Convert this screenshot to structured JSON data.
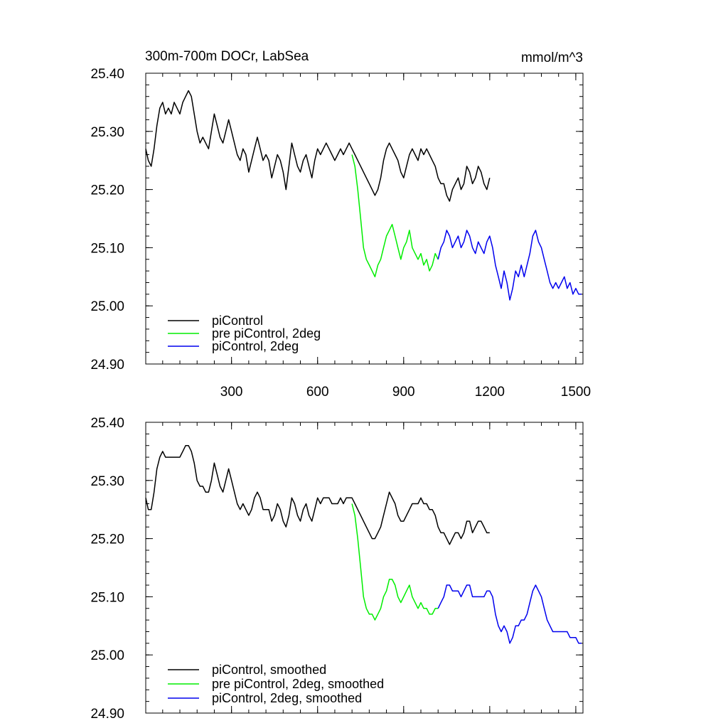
{
  "chart_data": [
    {
      "type": "line",
      "title": "300m-700m DOCr, LabSea",
      "units_label": "mmol/m^3",
      "xlim": [
        1,
        1525
      ],
      "ylim": [
        24.9,
        25.4
      ],
      "x_ticks": [
        300,
        600,
        900,
        1200,
        1500
      ],
      "x_tick_labels": [
        "300",
        "600",
        "900",
        "1200",
        "1500"
      ],
      "y_ticks": [
        24.9,
        25.0,
        25.1,
        25.2,
        25.3,
        25.4
      ],
      "y_tick_labels": [
        "24.90",
        "25.00",
        "25.10",
        "25.20",
        "25.30",
        "25.40"
      ],
      "grid": false,
      "legend_position": "bottom-left",
      "series": [
        {
          "name": "piControl",
          "color": "#000000",
          "x": [
            1,
            10,
            20,
            30,
            40,
            50,
            60,
            70,
            80,
            90,
            100,
            110,
            120,
            130,
            140,
            150,
            160,
            170,
            180,
            190,
            200,
            210,
            220,
            230,
            240,
            250,
            260,
            270,
            280,
            290,
            300,
            310,
            320,
            330,
            340,
            350,
            360,
            370,
            380,
            390,
            400,
            410,
            420,
            430,
            440,
            450,
            460,
            470,
            480,
            490,
            500,
            510,
            520,
            530,
            540,
            550,
            560,
            570,
            580,
            590,
            600,
            610,
            620,
            630,
            640,
            650,
            660,
            670,
            680,
            690,
            700,
            710,
            720,
            730,
            740,
            750,
            760,
            770,
            780,
            790,
            800,
            810,
            820,
            830,
            840,
            850,
            860,
            870,
            880,
            890,
            900,
            910,
            920,
            930,
            940,
            950,
            960,
            970,
            980,
            990,
            1000,
            1010,
            1020,
            1030,
            1040,
            1050,
            1060,
            1070,
            1080,
            1090,
            1100,
            1110,
            1120,
            1130,
            1140,
            1150,
            1160,
            1170,
            1180,
            1190,
            1200
          ],
          "y": [
            25.27,
            25.25,
            25.24,
            25.27,
            25.31,
            25.34,
            25.35,
            25.33,
            25.34,
            25.33,
            25.35,
            25.34,
            25.33,
            25.35,
            25.36,
            25.37,
            25.36,
            25.33,
            25.3,
            25.28,
            25.29,
            25.28,
            25.27,
            25.3,
            25.33,
            25.31,
            25.29,
            25.28,
            25.3,
            25.32,
            25.3,
            25.28,
            25.26,
            25.25,
            25.27,
            25.26,
            25.23,
            25.25,
            25.27,
            25.29,
            25.27,
            25.25,
            25.26,
            25.25,
            25.22,
            25.24,
            25.26,
            25.25,
            25.23,
            25.2,
            25.24,
            25.28,
            25.26,
            25.24,
            25.23,
            25.25,
            25.26,
            25.24,
            25.22,
            25.25,
            25.27,
            25.26,
            25.27,
            25.28,
            25.27,
            25.26,
            25.25,
            25.26,
            25.27,
            25.26,
            25.27,
            25.28,
            25.27,
            25.26,
            25.25,
            25.24,
            25.23,
            25.22,
            25.21,
            25.2,
            25.19,
            25.2,
            25.22,
            25.25,
            25.27,
            25.28,
            25.27,
            25.26,
            25.25,
            25.23,
            25.22,
            25.24,
            25.26,
            25.27,
            25.26,
            25.25,
            25.27,
            25.26,
            25.27,
            25.26,
            25.25,
            25.24,
            25.22,
            25.21,
            25.21,
            25.19,
            25.18,
            25.2,
            25.21,
            25.22,
            25.2,
            25.21,
            25.24,
            25.23,
            25.21,
            25.22,
            25.24,
            25.23,
            25.21,
            25.2,
            25.22
          ]
        },
        {
          "name": "pre piControl, 2deg",
          "color": "#00ee00",
          "x": [
            720,
            730,
            740,
            750,
            760,
            770,
            780,
            790,
            800,
            810,
            820,
            830,
            840,
            850,
            860,
            870,
            880,
            890,
            900,
            910,
            920,
            930,
            940,
            950,
            960,
            970,
            980,
            990,
            1000,
            1010,
            1020
          ],
          "y": [
            25.26,
            25.24,
            25.2,
            25.15,
            25.1,
            25.08,
            25.07,
            25.06,
            25.05,
            25.07,
            25.08,
            25.1,
            25.12,
            25.13,
            25.14,
            25.12,
            25.1,
            25.08,
            25.1,
            25.11,
            25.13,
            25.1,
            25.09,
            25.08,
            25.09,
            25.07,
            25.08,
            25.06,
            25.07,
            25.09,
            25.08
          ]
        },
        {
          "name": "piControl, 2deg",
          "color": "#0000ee",
          "x": [
            1020,
            1030,
            1040,
            1050,
            1060,
            1070,
            1080,
            1090,
            1100,
            1110,
            1120,
            1130,
            1140,
            1150,
            1160,
            1170,
            1180,
            1190,
            1200,
            1210,
            1220,
            1230,
            1240,
            1250,
            1260,
            1270,
            1280,
            1290,
            1300,
            1310,
            1320,
            1330,
            1340,
            1350,
            1360,
            1370,
            1380,
            1390,
            1400,
            1410,
            1420,
            1430,
            1440,
            1450,
            1460,
            1470,
            1480,
            1490,
            1500,
            1510,
            1520
          ],
          "y": [
            25.08,
            25.1,
            25.11,
            25.13,
            25.12,
            25.1,
            25.11,
            25.12,
            25.1,
            25.11,
            25.13,
            25.12,
            25.1,
            25.09,
            25.11,
            25.1,
            25.09,
            25.11,
            25.12,
            25.1,
            25.07,
            25.05,
            25.03,
            25.06,
            25.04,
            25.01,
            25.03,
            25.06,
            25.05,
            25.07,
            25.05,
            25.07,
            25.09,
            25.12,
            25.13,
            25.11,
            25.1,
            25.08,
            25.06,
            25.04,
            25.03,
            25.04,
            25.03,
            25.04,
            25.05,
            25.03,
            25.04,
            25.02,
            25.03,
            25.02,
            25.02
          ]
        }
      ]
    },
    {
      "type": "line",
      "xlim": [
        1,
        1525
      ],
      "ylim": [
        24.9,
        25.4
      ],
      "x_ticks": [
        300,
        600,
        900,
        1200,
        1500
      ],
      "y_ticks": [
        24.9,
        25.0,
        25.1,
        25.2,
        25.3,
        25.4
      ],
      "y_tick_labels": [
        "24.90",
        "25.00",
        "25.10",
        "25.20",
        "25.30",
        "25.40"
      ],
      "grid": false,
      "legend_position": "bottom-left",
      "series": [
        {
          "name": "piControl, smoothed",
          "color": "#000000",
          "x": [
            1,
            10,
            20,
            30,
            40,
            50,
            60,
            70,
            80,
            90,
            100,
            110,
            120,
            130,
            140,
            150,
            160,
            170,
            180,
            190,
            200,
            210,
            220,
            230,
            240,
            250,
            260,
            270,
            280,
            290,
            300,
            310,
            320,
            330,
            340,
            350,
            360,
            370,
            380,
            390,
            400,
            410,
            420,
            430,
            440,
            450,
            460,
            470,
            480,
            490,
            500,
            510,
            520,
            530,
            540,
            550,
            560,
            570,
            580,
            590,
            600,
            610,
            620,
            630,
            640,
            650,
            660,
            670,
            680,
            690,
            700,
            710,
            720,
            730,
            740,
            750,
            760,
            770,
            780,
            790,
            800,
            810,
            820,
            830,
            840,
            850,
            860,
            870,
            880,
            890,
            900,
            910,
            920,
            930,
            940,
            950,
            960,
            970,
            980,
            990,
            1000,
            1010,
            1020,
            1030,
            1040,
            1050,
            1060,
            1070,
            1080,
            1090,
            1100,
            1110,
            1120,
            1130,
            1140,
            1150,
            1160,
            1170,
            1180,
            1190,
            1200
          ],
          "y": [
            25.27,
            25.25,
            25.25,
            25.28,
            25.32,
            25.34,
            25.35,
            25.34,
            25.34,
            25.34,
            25.34,
            25.34,
            25.34,
            25.35,
            25.36,
            25.36,
            25.35,
            25.33,
            25.3,
            25.29,
            25.29,
            25.28,
            25.28,
            25.3,
            25.33,
            25.31,
            25.29,
            25.28,
            25.3,
            25.32,
            25.3,
            25.28,
            25.26,
            25.25,
            25.26,
            25.25,
            25.24,
            25.25,
            25.27,
            25.28,
            25.27,
            25.25,
            25.25,
            25.25,
            25.23,
            25.24,
            25.26,
            25.25,
            25.23,
            25.22,
            25.24,
            25.27,
            25.26,
            25.24,
            25.23,
            25.25,
            25.26,
            25.24,
            25.23,
            25.25,
            25.27,
            25.26,
            25.27,
            25.27,
            25.27,
            25.26,
            25.26,
            25.26,
            25.27,
            25.26,
            25.27,
            25.27,
            25.27,
            25.26,
            25.25,
            25.24,
            25.23,
            25.22,
            25.21,
            25.2,
            25.2,
            25.21,
            25.22,
            25.24,
            25.26,
            25.28,
            25.27,
            25.26,
            25.24,
            25.23,
            25.23,
            25.24,
            25.25,
            25.26,
            25.26,
            25.26,
            25.27,
            25.26,
            25.26,
            25.25,
            25.25,
            25.24,
            25.22,
            25.21,
            25.21,
            25.2,
            25.19,
            25.2,
            25.21,
            25.21,
            25.2,
            25.21,
            25.23,
            25.23,
            25.21,
            25.22,
            25.23,
            25.23,
            25.22,
            25.21,
            25.21
          ]
        },
        {
          "name": "pre piControl, 2deg, smoothed",
          "color": "#00ee00",
          "x": [
            720,
            730,
            740,
            750,
            760,
            770,
            780,
            790,
            800,
            810,
            820,
            830,
            840,
            850,
            860,
            870,
            880,
            890,
            900,
            910,
            920,
            930,
            940,
            950,
            960,
            970,
            980,
            990,
            1000,
            1010,
            1020
          ],
          "y": [
            25.26,
            25.24,
            25.2,
            25.15,
            25.1,
            25.08,
            25.07,
            25.07,
            25.06,
            25.07,
            25.08,
            25.1,
            25.11,
            25.13,
            25.13,
            25.12,
            25.1,
            25.09,
            25.1,
            25.11,
            25.12,
            25.1,
            25.09,
            25.08,
            25.09,
            25.08,
            25.08,
            25.07,
            25.07,
            25.08,
            25.08
          ]
        },
        {
          "name": "piControl, 2deg, smoothed",
          "color": "#0000ee",
          "x": [
            1020,
            1030,
            1040,
            1050,
            1060,
            1070,
            1080,
            1090,
            1100,
            1110,
            1120,
            1130,
            1140,
            1150,
            1160,
            1170,
            1180,
            1190,
            1200,
            1210,
            1220,
            1230,
            1240,
            1250,
            1260,
            1270,
            1280,
            1290,
            1300,
            1310,
            1320,
            1330,
            1340,
            1350,
            1360,
            1370,
            1380,
            1390,
            1400,
            1410,
            1420,
            1430,
            1440,
            1450,
            1460,
            1470,
            1480,
            1490,
            1500,
            1510,
            1520
          ],
          "y": [
            25.08,
            25.09,
            25.1,
            25.12,
            25.12,
            25.11,
            25.11,
            25.11,
            25.1,
            25.11,
            25.12,
            25.12,
            25.1,
            25.1,
            25.1,
            25.1,
            25.1,
            25.11,
            25.11,
            25.1,
            25.07,
            25.05,
            25.04,
            25.05,
            25.04,
            25.02,
            25.03,
            25.05,
            25.05,
            25.06,
            25.06,
            25.07,
            25.09,
            25.11,
            25.12,
            25.11,
            25.1,
            25.08,
            25.06,
            25.05,
            25.04,
            25.04,
            25.04,
            25.04,
            25.04,
            25.04,
            25.03,
            25.03,
            25.03,
            25.02,
            25.02
          ]
        }
      ]
    }
  ]
}
